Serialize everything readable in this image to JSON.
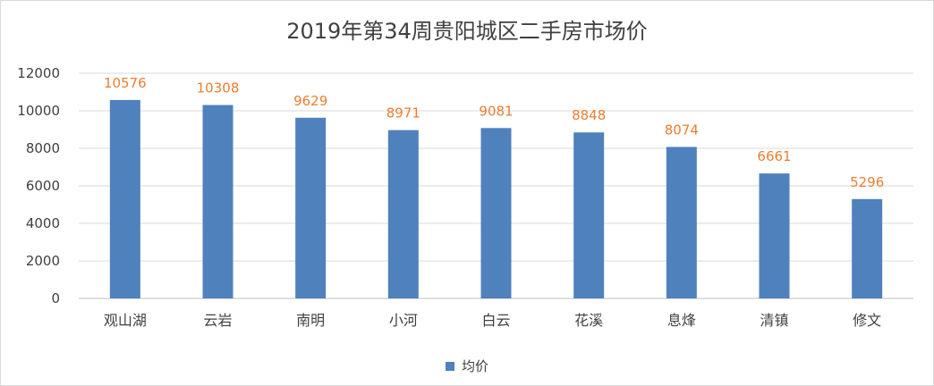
{
  "chart_data": {
    "type": "bar",
    "title": "2019年第34周贵阳城区二手房市场价",
    "categories": [
      "观山湖",
      "云岩",
      "南明",
      "小河",
      "白云",
      "花溪",
      "息烽",
      "清镇",
      "修文"
    ],
    "series": [
      {
        "name": "均价",
        "values": [
          10576,
          10308,
          9629,
          8971,
          9081,
          8848,
          8074,
          6661,
          5296
        ],
        "color": "#4f81bd"
      }
    ],
    "ylim": [
      0,
      12000
    ],
    "yticks": [
      0,
      2000,
      4000,
      6000,
      8000,
      10000,
      12000
    ],
    "grid": true,
    "legend_position": "bottom",
    "data_label_color": "#ed7d31",
    "xlabel": "",
    "ylabel": ""
  }
}
